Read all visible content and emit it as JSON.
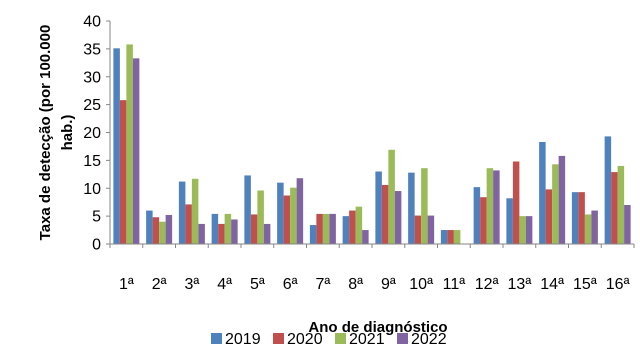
{
  "chart_data": {
    "type": "bar",
    "title": "",
    "xlabel": "Ano de diagnóstico",
    "ylabel": "Taxa de detecção (por 100.000 hab.)",
    "ylabel_lines": [
      "Taxa de detecção (por 100.000",
      "hab.)"
    ],
    "ylim": [
      0,
      40
    ],
    "yticks": [
      "0",
      "5",
      "10",
      "15",
      "20",
      "25",
      "30",
      "35",
      "40"
    ],
    "categories": [
      "1ª",
      "2ª",
      "3ª",
      "4ª",
      "5ª",
      "6ª",
      "7ª",
      "8ª",
      "9ª",
      "10ª",
      "11ª",
      "12ª",
      "13ª",
      "14ª",
      "15ª",
      "16ª"
    ],
    "grid": false,
    "legend_position": "bottom",
    "series": [
      {
        "name": "2019",
        "color": "#4f81bd",
        "values": [
          35.1,
          6.0,
          11.2,
          5.4,
          12.3,
          11.0,
          3.4,
          5.0,
          13.0,
          12.8,
          2.5,
          10.2,
          8.2,
          18.3,
          9.3,
          19.3
        ]
      },
      {
        "name": "2020",
        "color": "#c0504d",
        "values": [
          25.8,
          4.8,
          7.1,
          3.6,
          5.3,
          8.7,
          5.4,
          6.0,
          10.6,
          5.1,
          2.5,
          8.4,
          14.8,
          9.8,
          9.3,
          12.9
        ]
      },
      {
        "name": "2021",
        "color": "#9bbb59",
        "values": [
          35.8,
          4.0,
          11.7,
          5.4,
          9.6,
          10.1,
          5.4,
          6.7,
          16.9,
          13.6,
          2.5,
          13.6,
          5.0,
          14.3,
          5.3,
          14.0
        ]
      },
      {
        "name": "2022",
        "color": "#8064a2",
        "values": [
          33.3,
          5.2,
          3.6,
          4.4,
          3.6,
          11.8,
          5.4,
          2.5,
          9.5,
          5.1,
          0,
          13.2,
          5.0,
          15.8,
          6.0,
          7.0
        ]
      }
    ]
  }
}
